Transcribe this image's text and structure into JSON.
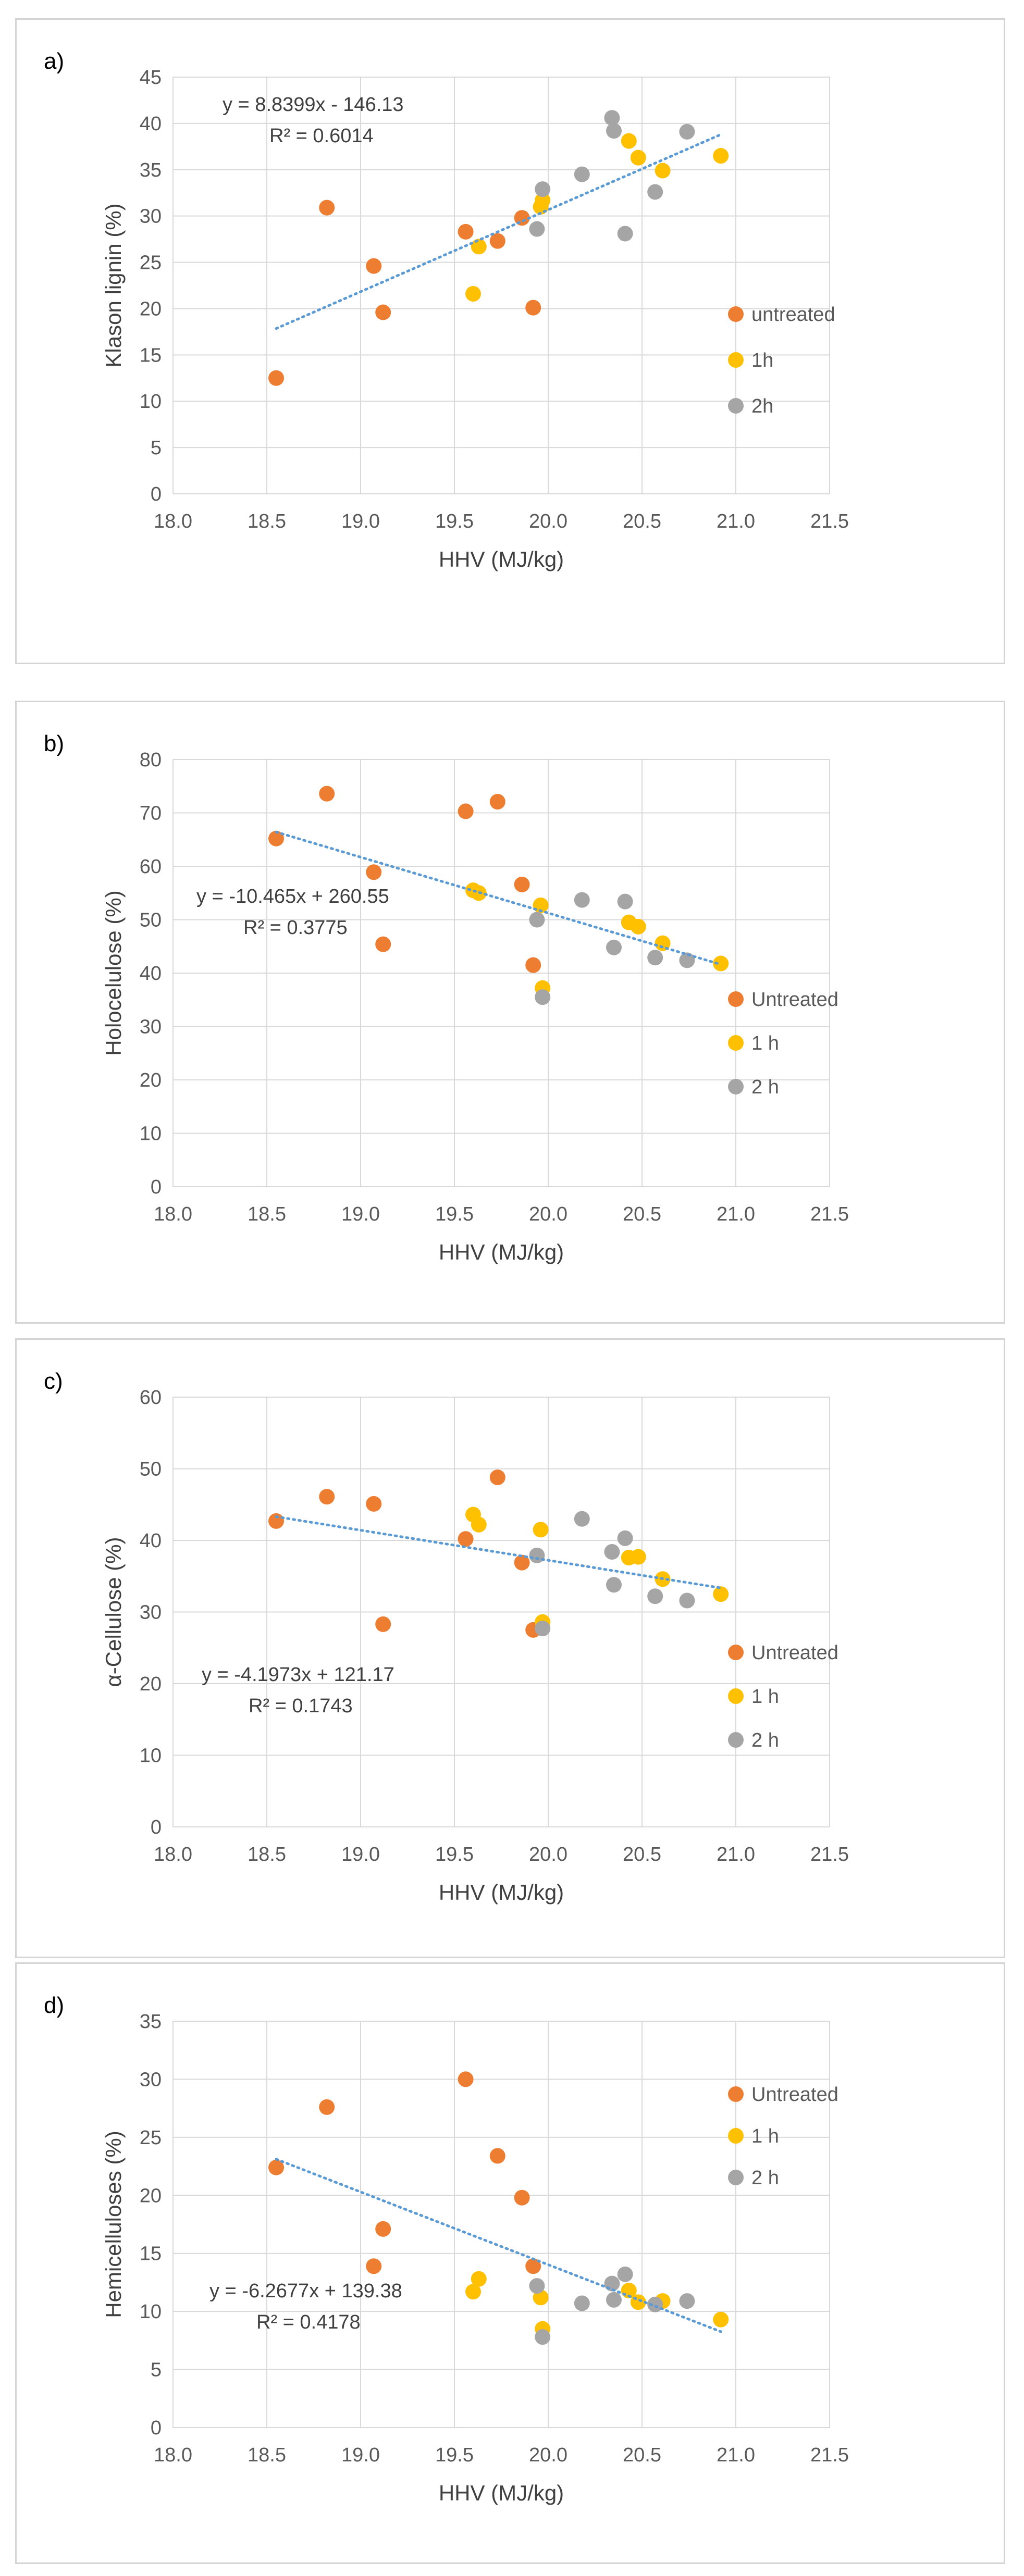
{
  "chart_data": [
    {
      "panel_label": "a)",
      "type": "scatter",
      "xlabel": "HHV (MJ/kg)",
      "ylabel": "Klason lignin (%)",
      "xlim": [
        18.0,
        21.5
      ],
      "ylim": [
        0,
        45
      ],
      "xticks": [
        "18.0",
        "18.5",
        "19.0",
        "19.5",
        "20.0",
        "20.5",
        "21.0",
        "21.5"
      ],
      "yticks": [
        "0",
        "5",
        "10",
        "15",
        "20",
        "25",
        "30",
        "35",
        "40",
        "45"
      ],
      "grid": true,
      "legend_placement": "right",
      "trendline": {
        "equation": "y = 8.8399x - 146.13",
        "r2": "R² = 0.6014",
        "slope": 8.8399,
        "intercept": -146.13,
        "x_range": [
          18.55,
          20.92
        ]
      },
      "series": [
        {
          "name": "untreated",
          "color": "#ED7D31",
          "points": [
            [
              18.55,
              12.5
            ],
            [
              18.82,
              30.9
            ],
            [
              19.07,
              24.6
            ],
            [
              19.12,
              19.6
            ],
            [
              19.56,
              28.3
            ],
            [
              19.73,
              27.3
            ],
            [
              19.86,
              29.8
            ],
            [
              19.92,
              20.1
            ]
          ]
        },
        {
          "name": "1h",
          "color": "#FFC000",
          "points": [
            [
              19.6,
              21.6
            ],
            [
              19.63,
              26.7
            ],
            [
              19.96,
              31.0
            ],
            [
              19.97,
              31.7
            ],
            [
              20.43,
              38.1
            ],
            [
              20.48,
              36.3
            ],
            [
              20.61,
              34.9
            ],
            [
              20.92,
              36.5
            ]
          ]
        },
        {
          "name": "2h",
          "color": "#A5A5A5",
          "points": [
            [
              19.94,
              28.6
            ],
            [
              19.97,
              32.9
            ],
            [
              20.18,
              34.5
            ],
            [
              20.34,
              40.6
            ],
            [
              20.35,
              39.2
            ],
            [
              20.41,
              28.1
            ],
            [
              20.57,
              32.6
            ],
            [
              20.74,
              39.1
            ]
          ]
        }
      ]
    },
    {
      "panel_label": "b)",
      "type": "scatter",
      "xlabel": "HHV (MJ/kg)",
      "ylabel": "Holocelulose (%)",
      "xlim": [
        18.0,
        21.5
      ],
      "ylim": [
        0,
        80
      ],
      "xticks": [
        "18.0",
        "18.5",
        "19.0",
        "19.5",
        "20.0",
        "20.5",
        "21.0",
        "21.5"
      ],
      "yticks": [
        "0",
        "10",
        "20",
        "30",
        "40",
        "50",
        "60",
        "70",
        "80"
      ],
      "grid": true,
      "legend_placement": "right",
      "trendline": {
        "equation": "y = -10.465x + 260.55",
        "r2": "R² = 0.3775",
        "slope": -10.465,
        "intercept": 260.55,
        "x_range": [
          18.55,
          20.92
        ]
      },
      "series": [
        {
          "name": "Untreated",
          "color": "#ED7D31",
          "points": [
            [
              18.55,
              65.2
            ],
            [
              18.82,
              73.6
            ],
            [
              19.07,
              58.9
            ],
            [
              19.12,
              45.4
            ],
            [
              19.56,
              70.3
            ],
            [
              19.73,
              72.1
            ],
            [
              19.86,
              56.6
            ],
            [
              19.92,
              41.5
            ]
          ]
        },
        {
          "name": "1 h",
          "color": "#FFC000",
          "points": [
            [
              19.6,
              55.5
            ],
            [
              19.63,
              55.0
            ],
            [
              19.96,
              52.7
            ],
            [
              19.97,
              37.2
            ],
            [
              20.43,
              49.5
            ],
            [
              20.48,
              48.7
            ],
            [
              20.61,
              45.6
            ],
            [
              20.92,
              41.8
            ]
          ]
        },
        {
          "name": "2 h",
          "color": "#A5A5A5",
          "points": [
            [
              19.94,
              50.0
            ],
            [
              19.97,
              35.5
            ],
            [
              20.18,
              53.7
            ],
            [
              20.35,
              44.8
            ],
            [
              20.41,
              53.4
            ],
            [
              20.57,
              42.9
            ],
            [
              20.74,
              42.4
            ]
          ]
        }
      ]
    },
    {
      "panel_label": "c)",
      "type": "scatter",
      "xlabel": "HHV (MJ/kg)",
      "ylabel": "α-Cellulose (%)",
      "xlim": [
        18.0,
        21.5
      ],
      "ylim": [
        0,
        60
      ],
      "xticks": [
        "18.0",
        "18.5",
        "19.0",
        "19.5",
        "20.0",
        "20.5",
        "21.0",
        "21.5"
      ],
      "yticks": [
        "0",
        "10",
        "20",
        "30",
        "40",
        "50",
        "60"
      ],
      "grid": true,
      "legend_placement": "right",
      "trendline": {
        "equation": "y = -4.1973x + 121.17",
        "r2": "R² = 0.1743",
        "slope": -4.1973,
        "intercept": 121.17,
        "x_range": [
          18.55,
          20.92
        ]
      },
      "series": [
        {
          "name": "Untreated",
          "color": "#ED7D31",
          "points": [
            [
              18.55,
              42.7
            ],
            [
              18.82,
              46.1
            ],
            [
              19.07,
              45.1
            ],
            [
              19.12,
              28.3
            ],
            [
              19.56,
              40.2
            ],
            [
              19.73,
              48.8
            ],
            [
              19.86,
              36.9
            ],
            [
              19.92,
              27.5
            ]
          ]
        },
        {
          "name": "1 h",
          "color": "#FFC000",
          "points": [
            [
              19.6,
              43.6
            ],
            [
              19.63,
              42.2
            ],
            [
              19.96,
              41.5
            ],
            [
              19.97,
              28.6
            ],
            [
              20.43,
              37.6
            ],
            [
              20.48,
              37.7
            ],
            [
              20.61,
              34.6
            ],
            [
              20.92,
              32.5
            ]
          ]
        },
        {
          "name": "2 h",
          "color": "#A5A5A5",
          "points": [
            [
              19.94,
              37.9
            ],
            [
              19.97,
              27.7
            ],
            [
              20.18,
              43.0
            ],
            [
              20.34,
              38.4
            ],
            [
              20.35,
              33.8
            ],
            [
              20.41,
              40.3
            ],
            [
              20.57,
              32.2
            ],
            [
              20.74,
              31.6
            ]
          ]
        }
      ]
    },
    {
      "panel_label": "d)",
      "type": "scatter",
      "xlabel": "HHV (MJ/kg)",
      "ylabel": "Hemicelluloses (%)",
      "xlim": [
        18.0,
        21.5
      ],
      "ylim": [
        0,
        35
      ],
      "xticks": [
        "18.0",
        "18.5",
        "19.0",
        "19.5",
        "20.0",
        "20.5",
        "21.0",
        "21.5"
      ],
      "yticks": [
        "0",
        "5",
        "10",
        "15",
        "20",
        "25",
        "30",
        "35"
      ],
      "grid": true,
      "legend_placement": "top-right",
      "trendline": {
        "equation": "y = -6.2677x + 139.38",
        "r2": "R² = 0.4178",
        "slope": -6.2677,
        "intercept": 139.38,
        "x_range": [
          18.55,
          20.92
        ]
      },
      "series": [
        {
          "name": "Untreated",
          "color": "#ED7D31",
          "points": [
            [
              18.55,
              22.4
            ],
            [
              18.82,
              27.6
            ],
            [
              19.07,
              13.9
            ],
            [
              19.12,
              17.1
            ],
            [
              19.56,
              30.0
            ],
            [
              19.73,
              23.4
            ],
            [
              19.86,
              19.8
            ],
            [
              19.92,
              13.9
            ]
          ]
        },
        {
          "name": "1 h",
          "color": "#FFC000",
          "points": [
            [
              19.6,
              11.7
            ],
            [
              19.63,
              12.8
            ],
            [
              19.96,
              11.2
            ],
            [
              19.97,
              8.5
            ],
            [
              20.43,
              11.8
            ],
            [
              20.48,
              10.8
            ],
            [
              20.61,
              10.9
            ],
            [
              20.92,
              9.3
            ]
          ]
        },
        {
          "name": "2 h",
          "color": "#A5A5A5",
          "points": [
            [
              19.94,
              12.2
            ],
            [
              19.97,
              7.8
            ],
            [
              20.18,
              10.7
            ],
            [
              20.35,
              11.0
            ],
            [
              20.34,
              12.4
            ],
            [
              20.41,
              13.2
            ],
            [
              20.57,
              10.6
            ],
            [
              20.74,
              10.9
            ]
          ]
        }
      ]
    }
  ]
}
